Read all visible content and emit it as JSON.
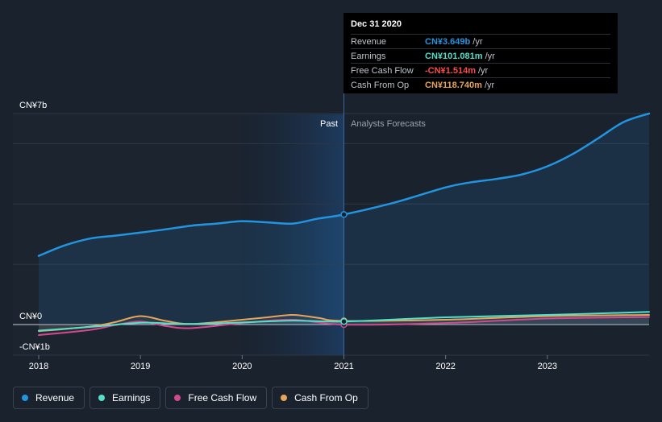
{
  "chart_data": {
    "type": "line",
    "y_axis": {
      "top_label": "CN¥7b",
      "zero_label": "CN¥0",
      "bottom_label": "-CN¥1b",
      "ylim": [
        -1,
        7
      ]
    },
    "x_ticks": [
      "2018",
      "2019",
      "2020",
      "2021",
      "2022",
      "2023"
    ],
    "xlim": [
      2018,
      2024
    ],
    "regions": {
      "past_label": "Past",
      "forecast_label": "Analysts Forecasts",
      "divider_x": 2021.0
    },
    "series": [
      {
        "name": "Revenue",
        "key": "revenue",
        "color": "#2394df",
        "filled": true,
        "points": [
          [
            2018.0,
            2.28
          ],
          [
            2018.25,
            2.62
          ],
          [
            2018.5,
            2.85
          ],
          [
            2018.75,
            2.95
          ],
          [
            2019.0,
            3.05
          ],
          [
            2019.25,
            3.16
          ],
          [
            2019.5,
            3.28
          ],
          [
            2019.75,
            3.35
          ],
          [
            2020.0,
            3.43
          ],
          [
            2020.25,
            3.39
          ],
          [
            2020.5,
            3.35
          ],
          [
            2020.75,
            3.52
          ],
          [
            2021.0,
            3.649
          ],
          [
            2021.5,
            4.05
          ],
          [
            2022.0,
            4.55
          ],
          [
            2022.25,
            4.72
          ],
          [
            2022.5,
            4.83
          ],
          [
            2022.75,
            4.98
          ],
          [
            2023.0,
            5.25
          ],
          [
            2023.25,
            5.66
          ],
          [
            2023.5,
            6.18
          ],
          [
            2023.75,
            6.72
          ],
          [
            2024.0,
            7.0
          ]
        ]
      },
      {
        "name": "Earnings",
        "key": "earnings",
        "color": "#53dfca",
        "points": [
          [
            2018.0,
            -0.2
          ],
          [
            2018.5,
            -0.08
          ],
          [
            2019.0,
            0.06
          ],
          [
            2019.25,
            0.04
          ],
          [
            2019.5,
            0.02
          ],
          [
            2020.0,
            0.07
          ],
          [
            2020.5,
            0.13
          ],
          [
            2021.0,
            0.101
          ],
          [
            2022.0,
            0.24
          ],
          [
            2023.0,
            0.32
          ],
          [
            2024.0,
            0.42
          ]
        ]
      },
      {
        "name": "Free Cash Flow",
        "key": "fcf",
        "color": "#d04b8e",
        "points": [
          [
            2018.0,
            -0.35
          ],
          [
            2018.5,
            -0.18
          ],
          [
            2018.75,
            -0.02
          ],
          [
            2019.0,
            0.1
          ],
          [
            2019.25,
            -0.05
          ],
          [
            2019.5,
            -0.12
          ],
          [
            2020.0,
            0.05
          ],
          [
            2020.5,
            0.16
          ],
          [
            2021.0,
            -0.0015
          ],
          [
            2022.0,
            0.05
          ],
          [
            2023.0,
            0.2
          ],
          [
            2024.0,
            0.25
          ]
        ]
      },
      {
        "name": "Cash From Op",
        "key": "cfo",
        "color": "#e7a55c",
        "points": [
          [
            2018.0,
            -0.22
          ],
          [
            2018.5,
            -0.07
          ],
          [
            2018.75,
            0.08
          ],
          [
            2019.0,
            0.28
          ],
          [
            2019.25,
            0.12
          ],
          [
            2019.5,
            0.02
          ],
          [
            2020.0,
            0.16
          ],
          [
            2020.25,
            0.24
          ],
          [
            2020.5,
            0.32
          ],
          [
            2020.75,
            0.22
          ],
          [
            2021.0,
            0.119
          ],
          [
            2022.0,
            0.16
          ],
          [
            2023.0,
            0.28
          ],
          [
            2024.0,
            0.32
          ]
        ]
      }
    ]
  },
  "tooltip": {
    "date": "Dec 31 2020",
    "rows": [
      {
        "name": "Revenue",
        "value": "CN¥3.649b",
        "unit": "/yr",
        "color": "#2394df"
      },
      {
        "name": "Earnings",
        "value": "CN¥101.081m",
        "unit": "/yr",
        "color": "#53dfca"
      },
      {
        "name": "Free Cash Flow",
        "value": "-CN¥1.514m",
        "unit": "/yr",
        "color": "#ff4a4a"
      },
      {
        "name": "Cash From Op",
        "value": "CN¥118.740m",
        "unit": "/yr",
        "color": "#e7a55c"
      }
    ]
  },
  "legend": [
    {
      "label": "Revenue",
      "color": "#2394df"
    },
    {
      "label": "Earnings",
      "color": "#53dfca"
    },
    {
      "label": "Free Cash Flow",
      "color": "#d04b8e"
    },
    {
      "label": "Cash From Op",
      "color": "#e7a55c"
    }
  ]
}
